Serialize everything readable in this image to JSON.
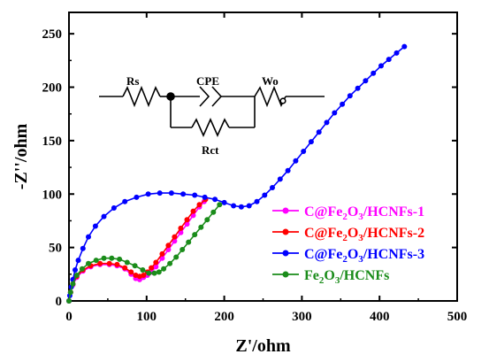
{
  "chart_data": {
    "type": "scatter",
    "xlabel": "Z'/ohm",
    "ylabel": "-Z''/ohm",
    "xlim": [
      0,
      500
    ],
    "ylim": [
      0,
      270
    ],
    "xticks": [
      "0",
      "100",
      "200",
      "300",
      "400",
      "500"
    ],
    "yticks": [
      "0",
      "50",
      "100",
      "150",
      "200",
      "250"
    ],
    "legend_position": "center-right",
    "series": [
      {
        "name_parts": [
          "C@Fe",
          "2",
          "O",
          "3",
          "/HCNFs-1"
        ],
        "color": "#ff00ff",
        "points": [
          [
            0,
            0
          ],
          [
            2,
            8
          ],
          [
            5,
            15
          ],
          [
            10,
            22
          ],
          [
            18,
            28
          ],
          [
            28,
            32
          ],
          [
            40,
            34
          ],
          [
            52,
            34
          ],
          [
            62,
            33
          ],
          [
            72,
            30
          ],
          [
            80,
            25
          ],
          [
            86,
            21
          ],
          [
            91,
            20
          ],
          [
            96,
            22
          ],
          [
            101,
            24
          ],
          [
            106,
            27
          ],
          [
            112,
            32
          ],
          [
            120,
            40
          ],
          [
            128,
            48
          ],
          [
            136,
            56
          ],
          [
            144,
            64
          ],
          [
            152,
            72
          ],
          [
            160,
            80
          ],
          [
            168,
            88
          ],
          [
            174,
            93
          ]
        ]
      },
      {
        "name_parts": [
          "C@Fe",
          "2",
          "O",
          "3",
          "/HCNFs-2"
        ],
        "color": "#ff0000",
        "points": [
          [
            0,
            0
          ],
          [
            2,
            8
          ],
          [
            5,
            16
          ],
          [
            10,
            23
          ],
          [
            18,
            29
          ],
          [
            28,
            33
          ],
          [
            40,
            35
          ],
          [
            52,
            35
          ],
          [
            62,
            34
          ],
          [
            72,
            31
          ],
          [
            80,
            27
          ],
          [
            86,
            24
          ],
          [
            91,
            23
          ],
          [
            96,
            24
          ],
          [
            101,
            27
          ],
          [
            106,
            31
          ],
          [
            112,
            36
          ],
          [
            120,
            44
          ],
          [
            128,
            52
          ],
          [
            136,
            60
          ],
          [
            144,
            68
          ],
          [
            152,
            76
          ],
          [
            160,
            84
          ],
          [
            168,
            90
          ],
          [
            176,
            95
          ]
        ]
      },
      {
        "name_parts": [
          "C@Fe",
          "2",
          "O",
          "3",
          "/HCNFs-3"
        ],
        "color": "#0000ff",
        "points": [
          [
            0,
            0
          ],
          [
            1,
            5
          ],
          [
            3,
            13
          ],
          [
            5,
            20
          ],
          [
            8,
            29
          ],
          [
            12,
            38
          ],
          [
            18,
            49
          ],
          [
            25,
            60
          ],
          [
            34,
            70
          ],
          [
            45,
            79
          ],
          [
            58,
            87
          ],
          [
            72,
            93
          ],
          [
            87,
            97
          ],
          [
            102,
            100
          ],
          [
            117,
            101
          ],
          [
            132,
            101
          ],
          [
            147,
            100
          ],
          [
            162,
            99
          ],
          [
            175,
            97
          ],
          [
            188,
            95
          ],
          [
            200,
            92
          ],
          [
            212,
            89
          ],
          [
            222,
            88
          ],
          [
            232,
            89
          ],
          [
            242,
            93
          ],
          [
            252,
            99
          ],
          [
            262,
            106
          ],
          [
            272,
            114
          ],
          [
            282,
            122
          ],
          [
            292,
            131
          ],
          [
            302,
            140
          ],
          [
            312,
            149
          ],
          [
            322,
            158
          ],
          [
            332,
            167
          ],
          [
            342,
            176
          ],
          [
            352,
            184
          ],
          [
            362,
            192
          ],
          [
            372,
            199
          ],
          [
            382,
            206
          ],
          [
            392,
            213
          ],
          [
            402,
            220
          ],
          [
            412,
            226
          ],
          [
            422,
            232
          ],
          [
            432,
            238
          ]
        ]
      },
      {
        "name_parts": [
          "Fe",
          "2",
          "O",
          "3",
          "/HCNFs"
        ],
        "color": "#1a8c1a",
        "points": [
          [
            0,
            0
          ],
          [
            2,
            8
          ],
          [
            5,
            16
          ],
          [
            10,
            24
          ],
          [
            17,
            30
          ],
          [
            25,
            35
          ],
          [
            35,
            38
          ],
          [
            45,
            40
          ],
          [
            55,
            40
          ],
          [
            65,
            39
          ],
          [
            75,
            36
          ],
          [
            85,
            33
          ],
          [
            95,
            29
          ],
          [
            103,
            26
          ],
          [
            110,
            26
          ],
          [
            116,
            27
          ],
          [
            122,
            30
          ],
          [
            130,
            35
          ],
          [
            138,
            41
          ],
          [
            146,
            48
          ],
          [
            154,
            55
          ],
          [
            162,
            62
          ],
          [
            170,
            69
          ],
          [
            178,
            76
          ],
          [
            186,
            83
          ],
          [
            194,
            90
          ]
        ]
      }
    ],
    "circuit": {
      "labels": {
        "rs": "Rs",
        "cpe": "CPE",
        "wo": "Wo",
        "rct": "Rct"
      }
    }
  }
}
